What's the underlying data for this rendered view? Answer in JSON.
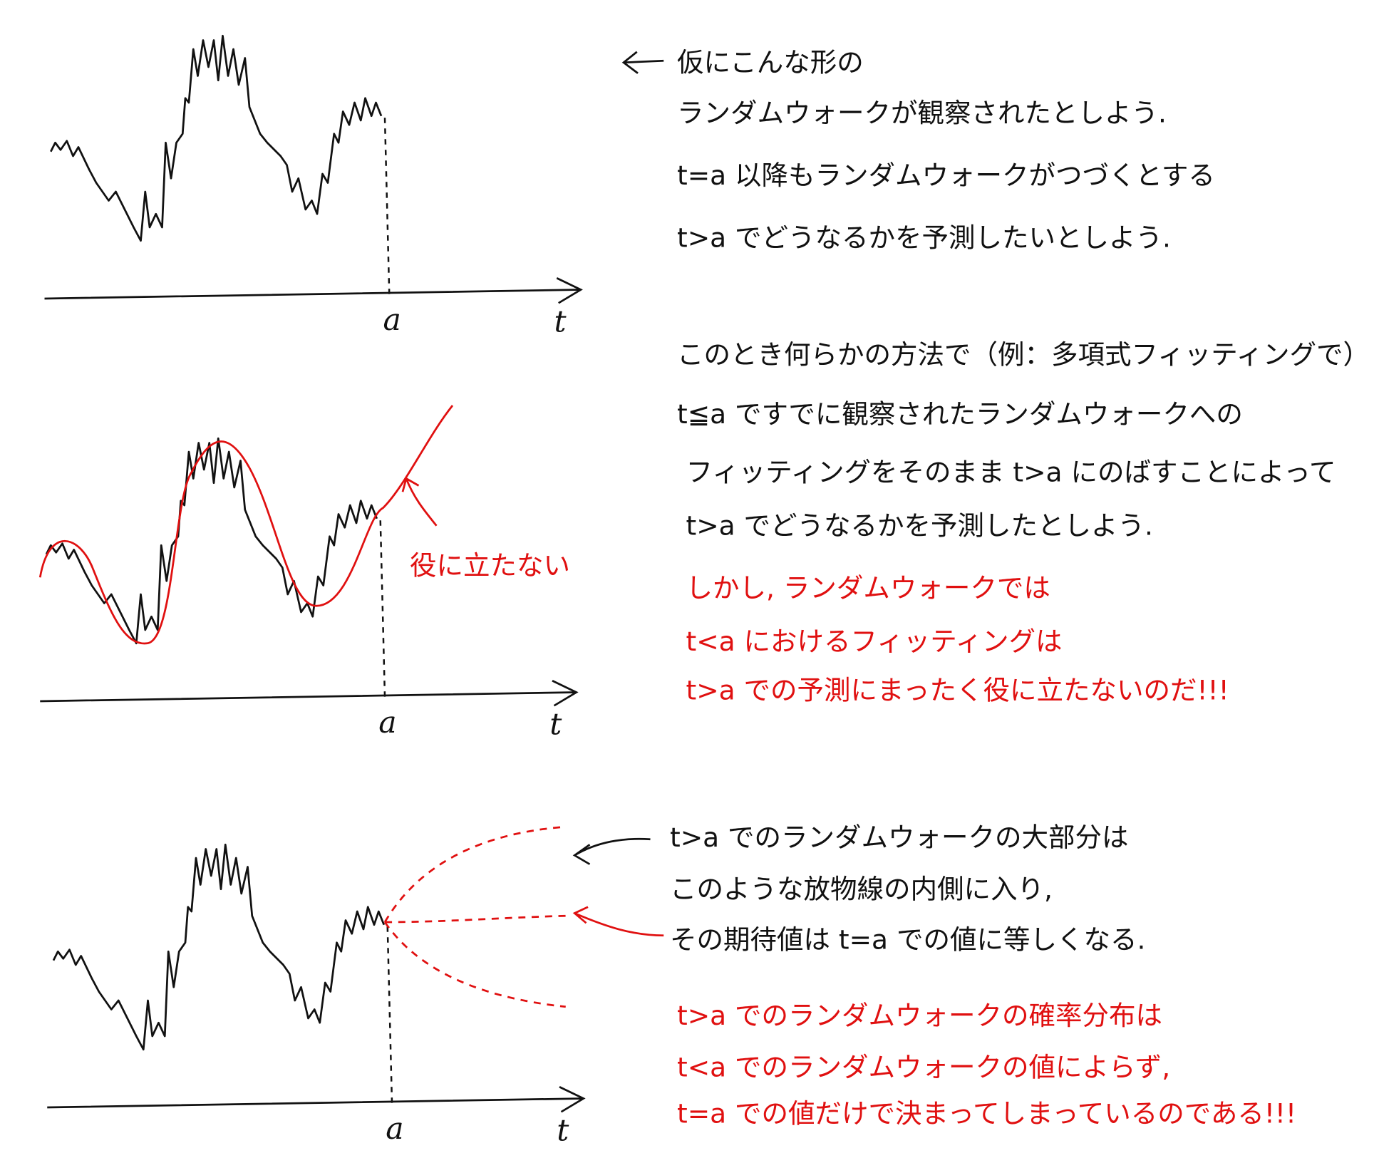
{
  "panels": [
    {
      "axis": {
        "a": "a",
        "t": "t"
      },
      "lines": [
        "仮にこんな形の",
        "ランダムウォークが観察されたとしよう.",
        "t=a 以降もランダムウォークがつづくとする",
        "t>a でどうなるかを予測したいとしよう."
      ]
    },
    {
      "axis": {
        "a": "a",
        "t": "t"
      },
      "annotation": "役に立たない",
      "lines": [
        "このとき何らかの方法で（例：多項式フィッティングで）",
        "t≦a ですでに観察されたランダムウォークへの",
        "フィッティングをそのまま t>a にのばすことによって",
        "t>a でどうなるかを予測したとしよう."
      ],
      "warning": [
        "しかし, ランダムウォークでは",
        "t<a におけるフィッティングは",
        "t>a での予測にまったく役に立たないのだ!!!"
      ]
    },
    {
      "axis": {
        "a": "a",
        "t": "t"
      },
      "lines": [
        "t>a でのランダムウォークの大部分は",
        "このような放物線の内側に入り,",
        "その期待値は t=a での値に等しくなる."
      ],
      "warning": [
        "t>a でのランダムウォークの確率分布は",
        "t<a でのランダムウォークの値によらず,",
        "t=a での値だけで決まってしまっているのである!!!"
      ]
    }
  ]
}
